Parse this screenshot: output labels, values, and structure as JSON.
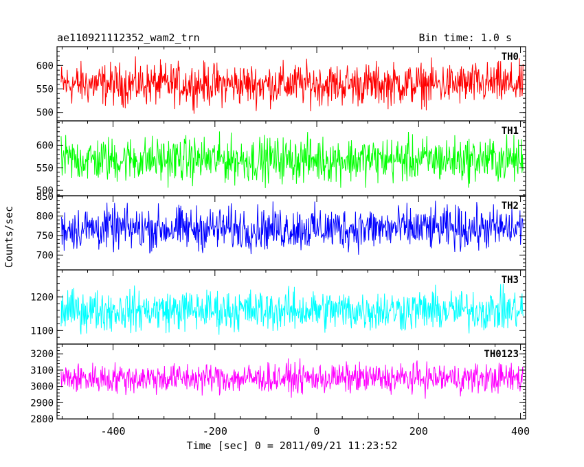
{
  "header": {
    "title": "ae110921112352_wam2_trn",
    "bin_time": "Bin time: 1.0 s"
  },
  "axes": {
    "ylabel": "Counts/sec",
    "xlabel": "Time [sec] 0 = 2011/09/21 11:23:52",
    "x_range": [
      -510,
      410
    ],
    "x_ticks": [
      -400,
      -200,
      0,
      200,
      400
    ]
  },
  "chart_data": [
    {
      "type": "line",
      "name": "TH0",
      "color": "#ff0000",
      "x_range": [
        -510,
        410
      ],
      "ylim": [
        482,
        640
      ],
      "yticks": [
        500,
        550,
        600
      ],
      "mean": 560,
      "spread": 34,
      "x_step": 1.0
    },
    {
      "type": "line",
      "name": "TH1",
      "color": "#00ff00",
      "x_range": [
        -510,
        410
      ],
      "ylim": [
        488,
        654
      ],
      "yticks": [
        500,
        550,
        600
      ],
      "mean": 568,
      "spread": 38,
      "x_step": 1.0
    },
    {
      "type": "line",
      "name": "TH2",
      "color": "#0000ff",
      "x_range": [
        -510,
        410
      ],
      "ylim": [
        662,
        852
      ],
      "yticks": [
        700,
        750,
        800,
        850
      ],
      "mean": 768,
      "spread": 42,
      "x_step": 1.0
    },
    {
      "type": "line",
      "name": "TH3",
      "color": "#00ffff",
      "x_range": [
        -510,
        410
      ],
      "ylim": [
        1060,
        1280
      ],
      "yticks": [
        1100,
        1200
      ],
      "mean": 1160,
      "spread": 46,
      "x_step": 1.0
    },
    {
      "type": "line",
      "name": "TH0123",
      "color": "#ff00ff",
      "x_range": [
        -510,
        410
      ],
      "ylim": [
        2800,
        3260
      ],
      "yticks": [
        2800,
        2900,
        3000,
        3100,
        3200
      ],
      "mean": 3050,
      "spread": 70,
      "x_step": 1.0
    }
  ]
}
